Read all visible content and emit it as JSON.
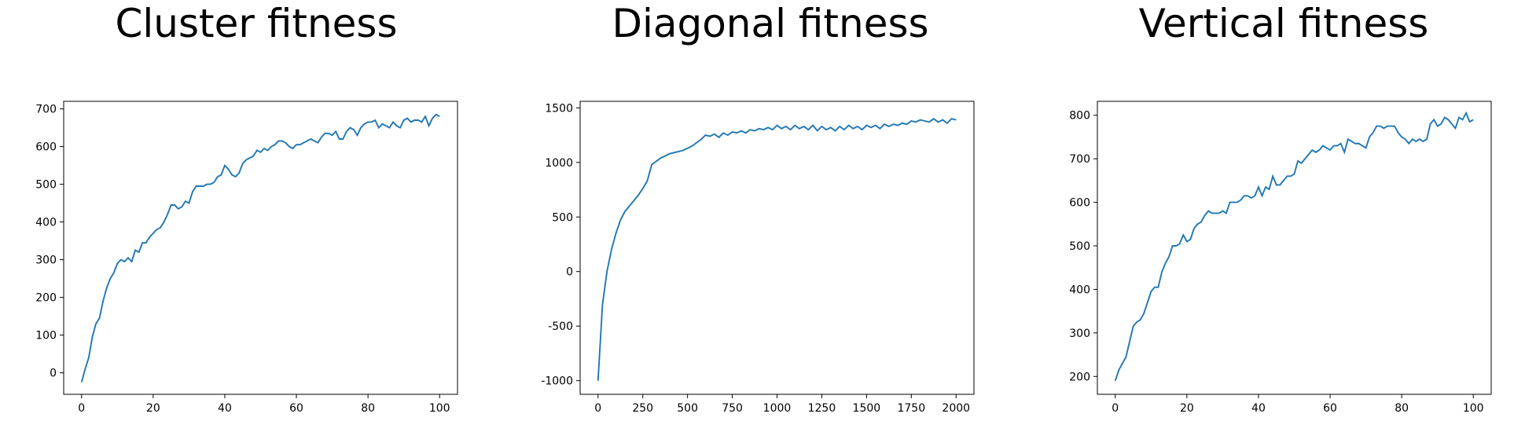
{
  "chart_data": [
    {
      "type": "line",
      "title": "Cluster fitness",
      "color": "#1f77b4",
      "x": [
        0,
        1,
        2,
        3,
        4,
        5,
        6,
        7,
        8,
        9,
        10,
        11,
        12,
        13,
        14,
        15,
        16,
        17,
        18,
        19,
        20,
        21,
        22,
        23,
        24,
        25,
        26,
        27,
        28,
        29,
        30,
        31,
        32,
        33,
        34,
        35,
        36,
        37,
        38,
        39,
        40,
        41,
        42,
        43,
        44,
        45,
        46,
        47,
        48,
        49,
        50,
        51,
        52,
        53,
        54,
        55,
        56,
        57,
        58,
        59,
        60,
        61,
        62,
        63,
        64,
        65,
        66,
        67,
        68,
        69,
        70,
        71,
        72,
        73,
        74,
        75,
        76,
        77,
        78,
        79,
        80,
        81,
        82,
        83,
        84,
        85,
        86,
        87,
        88,
        89,
        90,
        91,
        92,
        93,
        94,
        95,
        96,
        97,
        98,
        99,
        100
      ],
      "values": [
        -25,
        10,
        40,
        95,
        130,
        145,
        190,
        225,
        250,
        265,
        290,
        300,
        295,
        305,
        295,
        325,
        320,
        345,
        345,
        360,
        370,
        380,
        385,
        400,
        420,
        445,
        445,
        435,
        440,
        455,
        450,
        480,
        495,
        495,
        495,
        500,
        500,
        505,
        520,
        525,
        550,
        540,
        525,
        520,
        530,
        555,
        565,
        570,
        575,
        590,
        585,
        595,
        590,
        600,
        605,
        615,
        615,
        610,
        600,
        595,
        605,
        605,
        610,
        615,
        620,
        615,
        610,
        625,
        635,
        635,
        630,
        640,
        620,
        620,
        640,
        650,
        645,
        630,
        650,
        660,
        665,
        665,
        670,
        650,
        660,
        655,
        650,
        665,
        655,
        650,
        670,
        675,
        665,
        670,
        670,
        665,
        680,
        655,
        675,
        685,
        680
      ],
      "xlim": [
        -5,
        105
      ],
      "xticks": [
        0,
        20,
        40,
        60,
        80,
        100
      ],
      "ylim": [
        -57,
        720
      ],
      "yticks": [
        0,
        100,
        200,
        300,
        400,
        500,
        600,
        700
      ]
    },
    {
      "type": "line",
      "title": "Diagonal fitness",
      "color": "#1f77b4",
      "x": [
        0,
        25,
        50,
        75,
        100,
        125,
        150,
        175,
        200,
        225,
        250,
        275,
        300,
        325,
        350,
        375,
        400,
        425,
        450,
        475,
        500,
        525,
        550,
        575,
        600,
        625,
        650,
        675,
        700,
        725,
        750,
        775,
        800,
        825,
        850,
        875,
        900,
        925,
        950,
        975,
        1000,
        1025,
        1050,
        1075,
        1100,
        1125,
        1150,
        1175,
        1200,
        1225,
        1250,
        1275,
        1300,
        1325,
        1350,
        1375,
        1400,
        1425,
        1450,
        1475,
        1500,
        1525,
        1550,
        1575,
        1600,
        1625,
        1650,
        1675,
        1700,
        1725,
        1750,
        1775,
        1800,
        1825,
        1850,
        1875,
        1900,
        1925,
        1950,
        1975,
        2000
      ],
      "values": [
        -1000,
        -300,
        0,
        200,
        350,
        470,
        550,
        600,
        650,
        700,
        760,
        830,
        980,
        1010,
        1040,
        1060,
        1080,
        1090,
        1100,
        1110,
        1130,
        1150,
        1180,
        1210,
        1250,
        1240,
        1260,
        1230,
        1270,
        1250,
        1280,
        1270,
        1290,
        1270,
        1300,
        1290,
        1310,
        1300,
        1320,
        1300,
        1340,
        1310,
        1330,
        1300,
        1340,
        1310,
        1330,
        1300,
        1340,
        1290,
        1330,
        1300,
        1320,
        1290,
        1330,
        1300,
        1340,
        1310,
        1330,
        1300,
        1340,
        1320,
        1340,
        1310,
        1350,
        1330,
        1350,
        1340,
        1360,
        1350,
        1380,
        1370,
        1390,
        1380,
        1370,
        1400,
        1370,
        1390,
        1360,
        1400,
        1390
      ],
      "xlim": [
        -100,
        2100
      ],
      "xticks": [
        0,
        250,
        500,
        750,
        1000,
        1250,
        1500,
        1750,
        2000
      ],
      "ylim": [
        -1125,
        1560
      ],
      "yticks": [
        -1000,
        -500,
        0,
        500,
        1000,
        1500
      ]
    },
    {
      "type": "line",
      "title": "Vertical fitness",
      "color": "#1f77b4",
      "x": [
        0,
        1,
        2,
        3,
        4,
        5,
        6,
        7,
        8,
        9,
        10,
        11,
        12,
        13,
        14,
        15,
        16,
        17,
        18,
        19,
        20,
        21,
        22,
        23,
        24,
        25,
        26,
        27,
        28,
        29,
        30,
        31,
        32,
        33,
        34,
        35,
        36,
        37,
        38,
        39,
        40,
        41,
        42,
        43,
        44,
        45,
        46,
        47,
        48,
        49,
        50,
        51,
        52,
        53,
        54,
        55,
        56,
        57,
        58,
        59,
        60,
        61,
        62,
        63,
        64,
        65,
        66,
        67,
        68,
        69,
        70,
        71,
        72,
        73,
        74,
        75,
        76,
        77,
        78,
        79,
        80,
        81,
        82,
        83,
        84,
        85,
        86,
        87,
        88,
        89,
        90,
        91,
        92,
        93,
        94,
        95,
        96,
        97,
        98,
        99,
        100
      ],
      "values": [
        190,
        215,
        230,
        245,
        280,
        315,
        325,
        330,
        345,
        370,
        395,
        405,
        405,
        440,
        460,
        475,
        500,
        500,
        505,
        525,
        510,
        515,
        540,
        550,
        555,
        570,
        580,
        575,
        575,
        575,
        580,
        575,
        600,
        600,
        600,
        605,
        615,
        615,
        610,
        615,
        635,
        615,
        635,
        630,
        660,
        640,
        640,
        650,
        660,
        660,
        665,
        695,
        690,
        700,
        710,
        720,
        715,
        720,
        730,
        725,
        720,
        730,
        730,
        735,
        715,
        745,
        740,
        735,
        735,
        730,
        725,
        750,
        760,
        775,
        775,
        770,
        775,
        775,
        775,
        760,
        750,
        745,
        735,
        745,
        740,
        745,
        740,
        745,
        780,
        790,
        775,
        780,
        795,
        790,
        780,
        770,
        795,
        790,
        805,
        785,
        790
      ],
      "xlim": [
        -5,
        105
      ],
      "xticks": [
        0,
        20,
        40,
        60,
        80,
        100
      ],
      "ylim": [
        159,
        832
      ],
      "yticks": [
        200,
        300,
        400,
        500,
        600,
        700,
        800
      ]
    }
  ]
}
